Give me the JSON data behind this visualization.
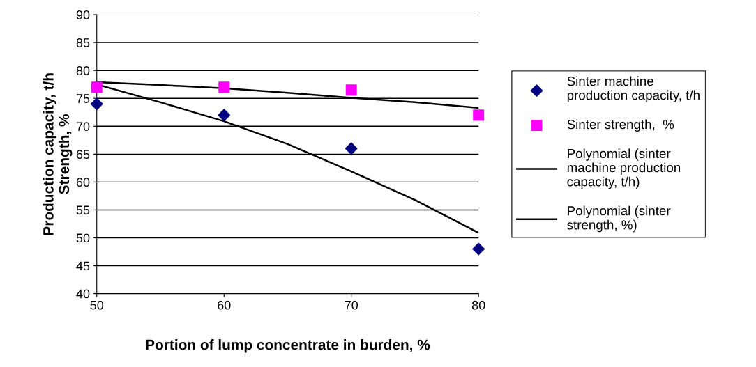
{
  "chart_data": {
    "type": "scatter",
    "xlabel": "Portion of lump concentrate in burden, %",
    "ylabel": "Production capacity, t/h\nStrength, %",
    "x": [
      50,
      60,
      70,
      80
    ],
    "series": [
      {
        "name": "Sinter machine\nproduction capacity, t/h",
        "marker": "diamond",
        "color": "#000080",
        "values": [
          74,
          72,
          66,
          48
        ]
      },
      {
        "name": "Sinter strength,  %",
        "marker": "square",
        "color": "#ff00ff",
        "values": [
          77,
          77,
          76.5,
          72
        ]
      },
      {
        "name": "Polynomial (sinter\nmachine production\ncapacity, t/h)",
        "type": "line",
        "marker": "none",
        "line_style": "solid",
        "color": "#000000",
        "x": [
          50,
          55,
          60,
          65,
          70,
          75,
          80
        ],
        "values": [
          77.5,
          74.3,
          70.9,
          66.8,
          61.9,
          56.8,
          50.9
        ]
      },
      {
        "name": "Polynomial (sinter\nstrength, %)",
        "type": "line",
        "marker": "none",
        "line_style": "solid",
        "color": "#000000",
        "x": [
          50,
          55,
          60,
          65,
          70,
          75,
          80
        ],
        "values": [
          77.9,
          77.4,
          76.8,
          76,
          75.1,
          74.3,
          73.3
        ]
      }
    ],
    "xlim": [
      50,
      80
    ],
    "xticks": [
      50,
      60,
      70,
      80
    ],
    "ylim": [
      40,
      90
    ],
    "yticks": [
      40,
      45,
      50,
      55,
      60,
      65,
      70,
      75,
      80,
      85,
      90
    ],
    "grid": "y",
    "legend": "right"
  }
}
